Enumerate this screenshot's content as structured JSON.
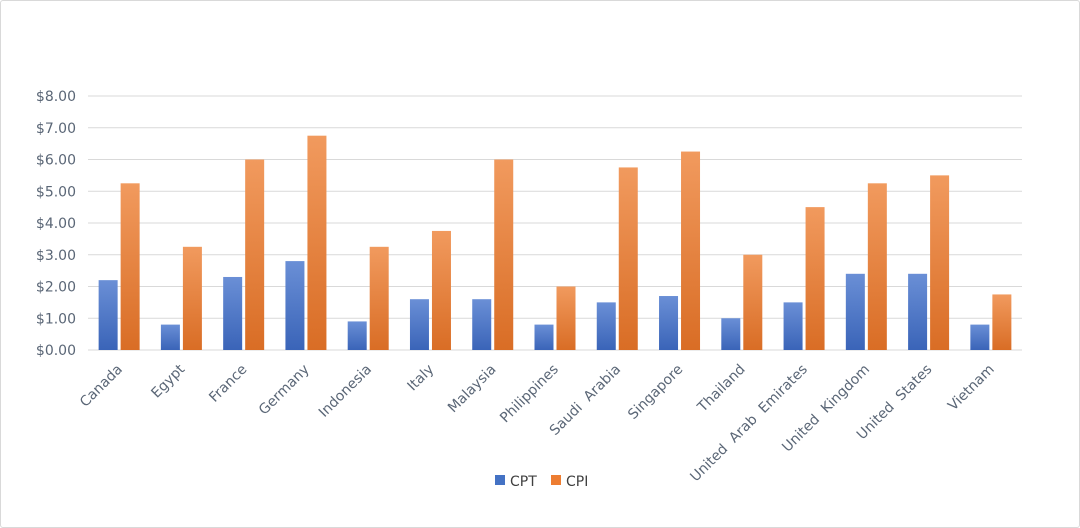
{
  "chart_data": {
    "type": "bar",
    "title": "",
    "xlabel": "",
    "ylabel": "",
    "categories": [
      "Canada",
      "Egypt",
      "France",
      "Germany",
      "Indonesia",
      "Italy",
      "Malaysia",
      "Philippines",
      "Saudi  Arabia",
      "Singapore",
      "Thailand",
      "United  Arab  Emirates",
      "United  Kingdom",
      "United  States",
      "Vietnam"
    ],
    "series": [
      {
        "name": "CPT",
        "color": "#4472c4",
        "values": [
          2.2,
          0.8,
          2.3,
          2.8,
          0.9,
          1.6,
          1.6,
          0.8,
          1.5,
          1.7,
          1.0,
          1.5,
          2.4,
          2.4,
          0.8
        ]
      },
      {
        "name": "CPI",
        "color": "#ed7d31",
        "values": [
          5.25,
          3.25,
          6.0,
          6.75,
          3.25,
          3.75,
          6.0,
          2.0,
          5.75,
          6.25,
          3.0,
          4.5,
          5.25,
          5.5,
          1.75
        ]
      }
    ],
    "ylim": [
      0,
      8
    ],
    "yticks": [
      "$0.00",
      "$1.00",
      "$2.00",
      "$3.00",
      "$4.00",
      "$5.00",
      "$6.00",
      "$7.00",
      "$8.00"
    ],
    "grid": true,
    "legend": "bottom-center"
  }
}
